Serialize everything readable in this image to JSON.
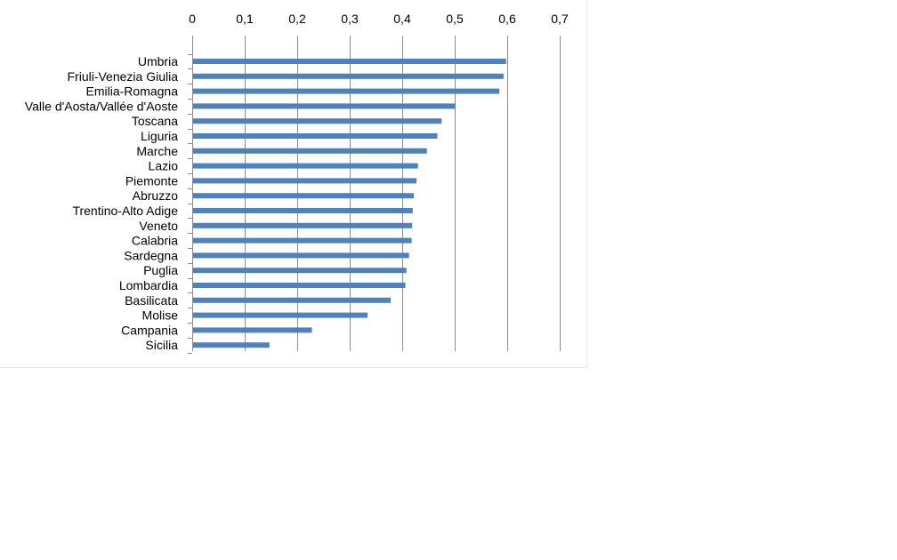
{
  "chart_data": {
    "type": "bar",
    "orientation": "horizontal",
    "categories": [
      "Umbria",
      "Friuli-Venezia Giulia",
      "Emilia-Romagna",
      "Valle d'Aosta/Vallée d'Aoste",
      "Toscana",
      "Liguria",
      "Marche",
      "Lazio",
      "Piemonte",
      "Abruzzo",
      "Trentino-Alto Adige",
      "Veneto",
      "Calabria",
      "Sardegna",
      "Puglia",
      "Lombardia",
      "Basilicata",
      "Molise",
      "Campania",
      "Sicilia"
    ],
    "values": [
      0.598,
      0.593,
      0.585,
      0.501,
      0.475,
      0.467,
      0.447,
      0.43,
      0.427,
      0.422,
      0.42,
      0.419,
      0.418,
      0.413,
      0.408,
      0.406,
      0.378,
      0.334,
      0.228,
      0.147
    ],
    "x_ticks": [
      "0",
      "0,1",
      "0,2",
      "0,3",
      "0,4",
      "0,5",
      "0,6",
      "0,7"
    ],
    "xlim": [
      0,
      0.7
    ],
    "title": "",
    "xlabel": "",
    "ylabel": "",
    "x_axis_position": "top",
    "grid": "vertical",
    "legend": "none",
    "bar_color": "#4f81bd"
  }
}
